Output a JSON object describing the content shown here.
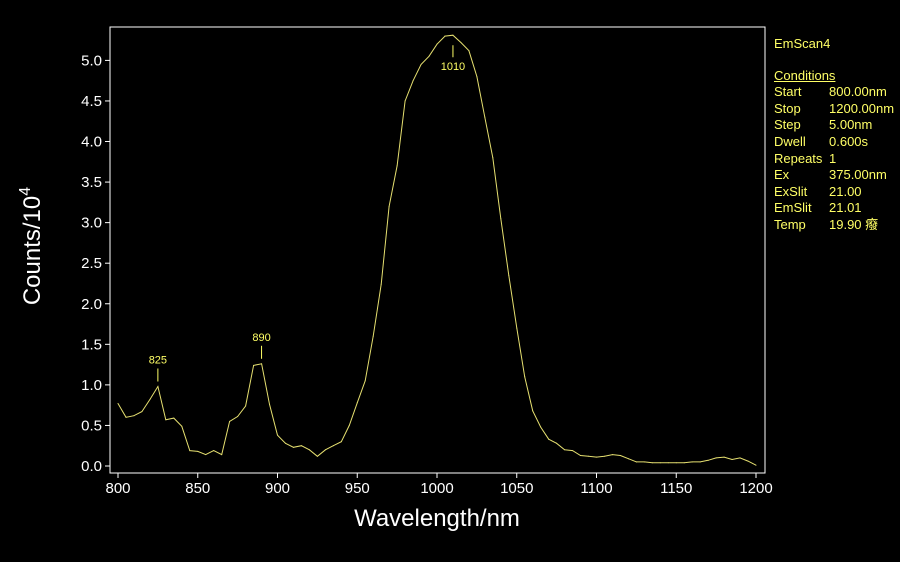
{
  "chart_data": {
    "type": "line",
    "xlabel": "Wavelength/nm",
    "ylabel_main": "Counts/10",
    "ylabel_exp": "4",
    "xlim": [
      800,
      1200
    ],
    "ylim": [
      0,
      5.35
    ],
    "xticks": [
      800,
      850,
      900,
      950,
      1000,
      1050,
      1100,
      1150,
      1200
    ],
    "yticks": [
      0.0,
      0.5,
      1.0,
      1.5,
      2.0,
      2.5,
      3.0,
      3.5,
      4.0,
      4.5,
      5.0
    ],
    "grid": false,
    "line_color": "#e6e070",
    "x": [
      800,
      805,
      810,
      815,
      820,
      825,
      830,
      835,
      840,
      845,
      850,
      855,
      860,
      865,
      870,
      875,
      880,
      885,
      890,
      895,
      900,
      905,
      910,
      915,
      920,
      925,
      930,
      935,
      940,
      945,
      950,
      955,
      960,
      965,
      970,
      975,
      980,
      985,
      990,
      995,
      1000,
      1005,
      1010,
      1015,
      1020,
      1025,
      1030,
      1035,
      1040,
      1045,
      1050,
      1055,
      1060,
      1065,
      1070,
      1075,
      1080,
      1085,
      1090,
      1095,
      1100,
      1105,
      1110,
      1115,
      1120,
      1125,
      1130,
      1135,
      1140,
      1145,
      1150,
      1155,
      1160,
      1165,
      1170,
      1175,
      1180,
      1185,
      1190,
      1195,
      1200
    ],
    "series": [
      {
        "values": [
          0.77,
          0.6,
          0.62,
          0.67,
          0.82,
          0.98,
          0.57,
          0.59,
          0.49,
          0.19,
          0.18,
          0.14,
          0.19,
          0.14,
          0.55,
          0.61,
          0.74,
          1.24,
          1.26,
          0.76,
          0.38,
          0.28,
          0.23,
          0.25,
          0.2,
          0.12,
          0.2,
          0.25,
          0.3,
          0.5,
          0.78,
          1.05,
          1.6,
          2.24,
          3.2,
          3.7,
          4.5,
          4.75,
          4.95,
          5.05,
          5.2,
          5.3,
          5.31,
          5.22,
          5.12,
          4.8,
          4.3,
          3.8,
          3.05,
          2.35,
          1.7,
          1.1,
          0.68,
          0.48,
          0.33,
          0.28,
          0.2,
          0.19,
          0.13,
          0.12,
          0.11,
          0.12,
          0.14,
          0.13,
          0.09,
          0.05,
          0.05,
          0.04,
          0.04,
          0.04,
          0.04,
          0.04,
          0.05,
          0.05,
          0.07,
          0.1,
          0.11,
          0.08,
          0.1,
          0.06,
          0.01
        ]
      }
    ],
    "annotations": [
      {
        "x": 825,
        "y": 0.98,
        "text": "825"
      },
      {
        "x": 890,
        "y": 1.26,
        "text": "890"
      },
      {
        "x": 1010,
        "y": 5.31,
        "text": "1010"
      }
    ]
  },
  "info": {
    "scan_name": "EmScan4",
    "conditions_title": "Conditions",
    "rows": [
      {
        "key": "Start",
        "value": "800.00nm"
      },
      {
        "key": "Stop",
        "value": "1200.00nm"
      },
      {
        "key": "Step",
        "value": "5.00nm"
      },
      {
        "key": "Dwell",
        "value": "0.600s"
      },
      {
        "key": "Repeats",
        "value": "1"
      },
      {
        "key": "Ex",
        "value": "375.00nm"
      },
      {
        "key": "ExSlit",
        "value": "21.00"
      },
      {
        "key": "EmSlit",
        "value": "21.01"
      },
      {
        "key": "Temp",
        "value": "19.90 癈"
      }
    ]
  }
}
